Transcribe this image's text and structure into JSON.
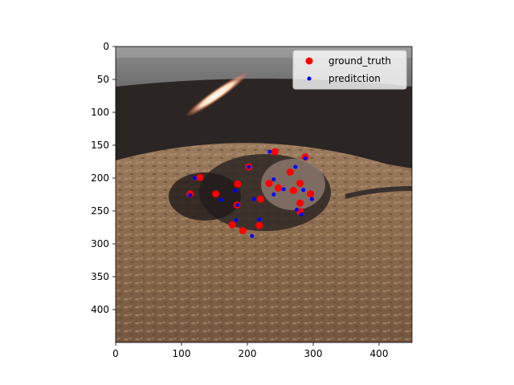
{
  "chart_data": {
    "type": "scatter",
    "background": "photo of a rodent on wood-shaving bedding",
    "xlim": [
      0,
      450
    ],
    "ylim": [
      450,
      0
    ],
    "y_inverted": true,
    "xticks": [
      0,
      100,
      200,
      300,
      400
    ],
    "yticks": [
      0,
      50,
      100,
      150,
      200,
      250,
      300,
      350,
      400
    ],
    "grid": false,
    "legend_position": "top-right",
    "series": [
      {
        "name": "ground_truth",
        "color": "#ff0000",
        "marker_size": "large",
        "points": [
          [
            242,
            160
          ],
          [
            265,
            191
          ],
          [
            288,
            168
          ],
          [
            233,
            208
          ],
          [
            247,
            215
          ],
          [
            280,
            208
          ],
          [
            296,
            224
          ],
          [
            128,
            199
          ],
          [
            113,
            224
          ],
          [
            152,
            224
          ],
          [
            185,
            209
          ],
          [
            184,
            241
          ],
          [
            202,
            183
          ],
          [
            270,
            219
          ],
          [
            280,
            238
          ],
          [
            280,
            251
          ],
          [
            220,
            232
          ],
          [
            177,
            271
          ],
          [
            193,
            280
          ],
          [
            218,
            272
          ]
        ]
      },
      {
        "name": "preditction",
        "color": "#0000ff",
        "marker_size": "small",
        "points": [
          [
            234,
            160
          ],
          [
            288,
            170
          ],
          [
            202,
            183
          ],
          [
            273,
            183
          ],
          [
            120,
            200
          ],
          [
            240,
            202
          ],
          [
            285,
            218
          ],
          [
            255,
            217
          ],
          [
            240,
            225
          ],
          [
            160,
            233
          ],
          [
            210,
            232
          ],
          [
            298,
            232
          ],
          [
            113,
            226
          ],
          [
            185,
            241
          ],
          [
            275,
            248
          ],
          [
            282,
            255
          ],
          [
            183,
            264
          ],
          [
            218,
            263
          ],
          [
            207,
            288
          ],
          [
            182,
            219
          ]
        ]
      }
    ]
  }
}
